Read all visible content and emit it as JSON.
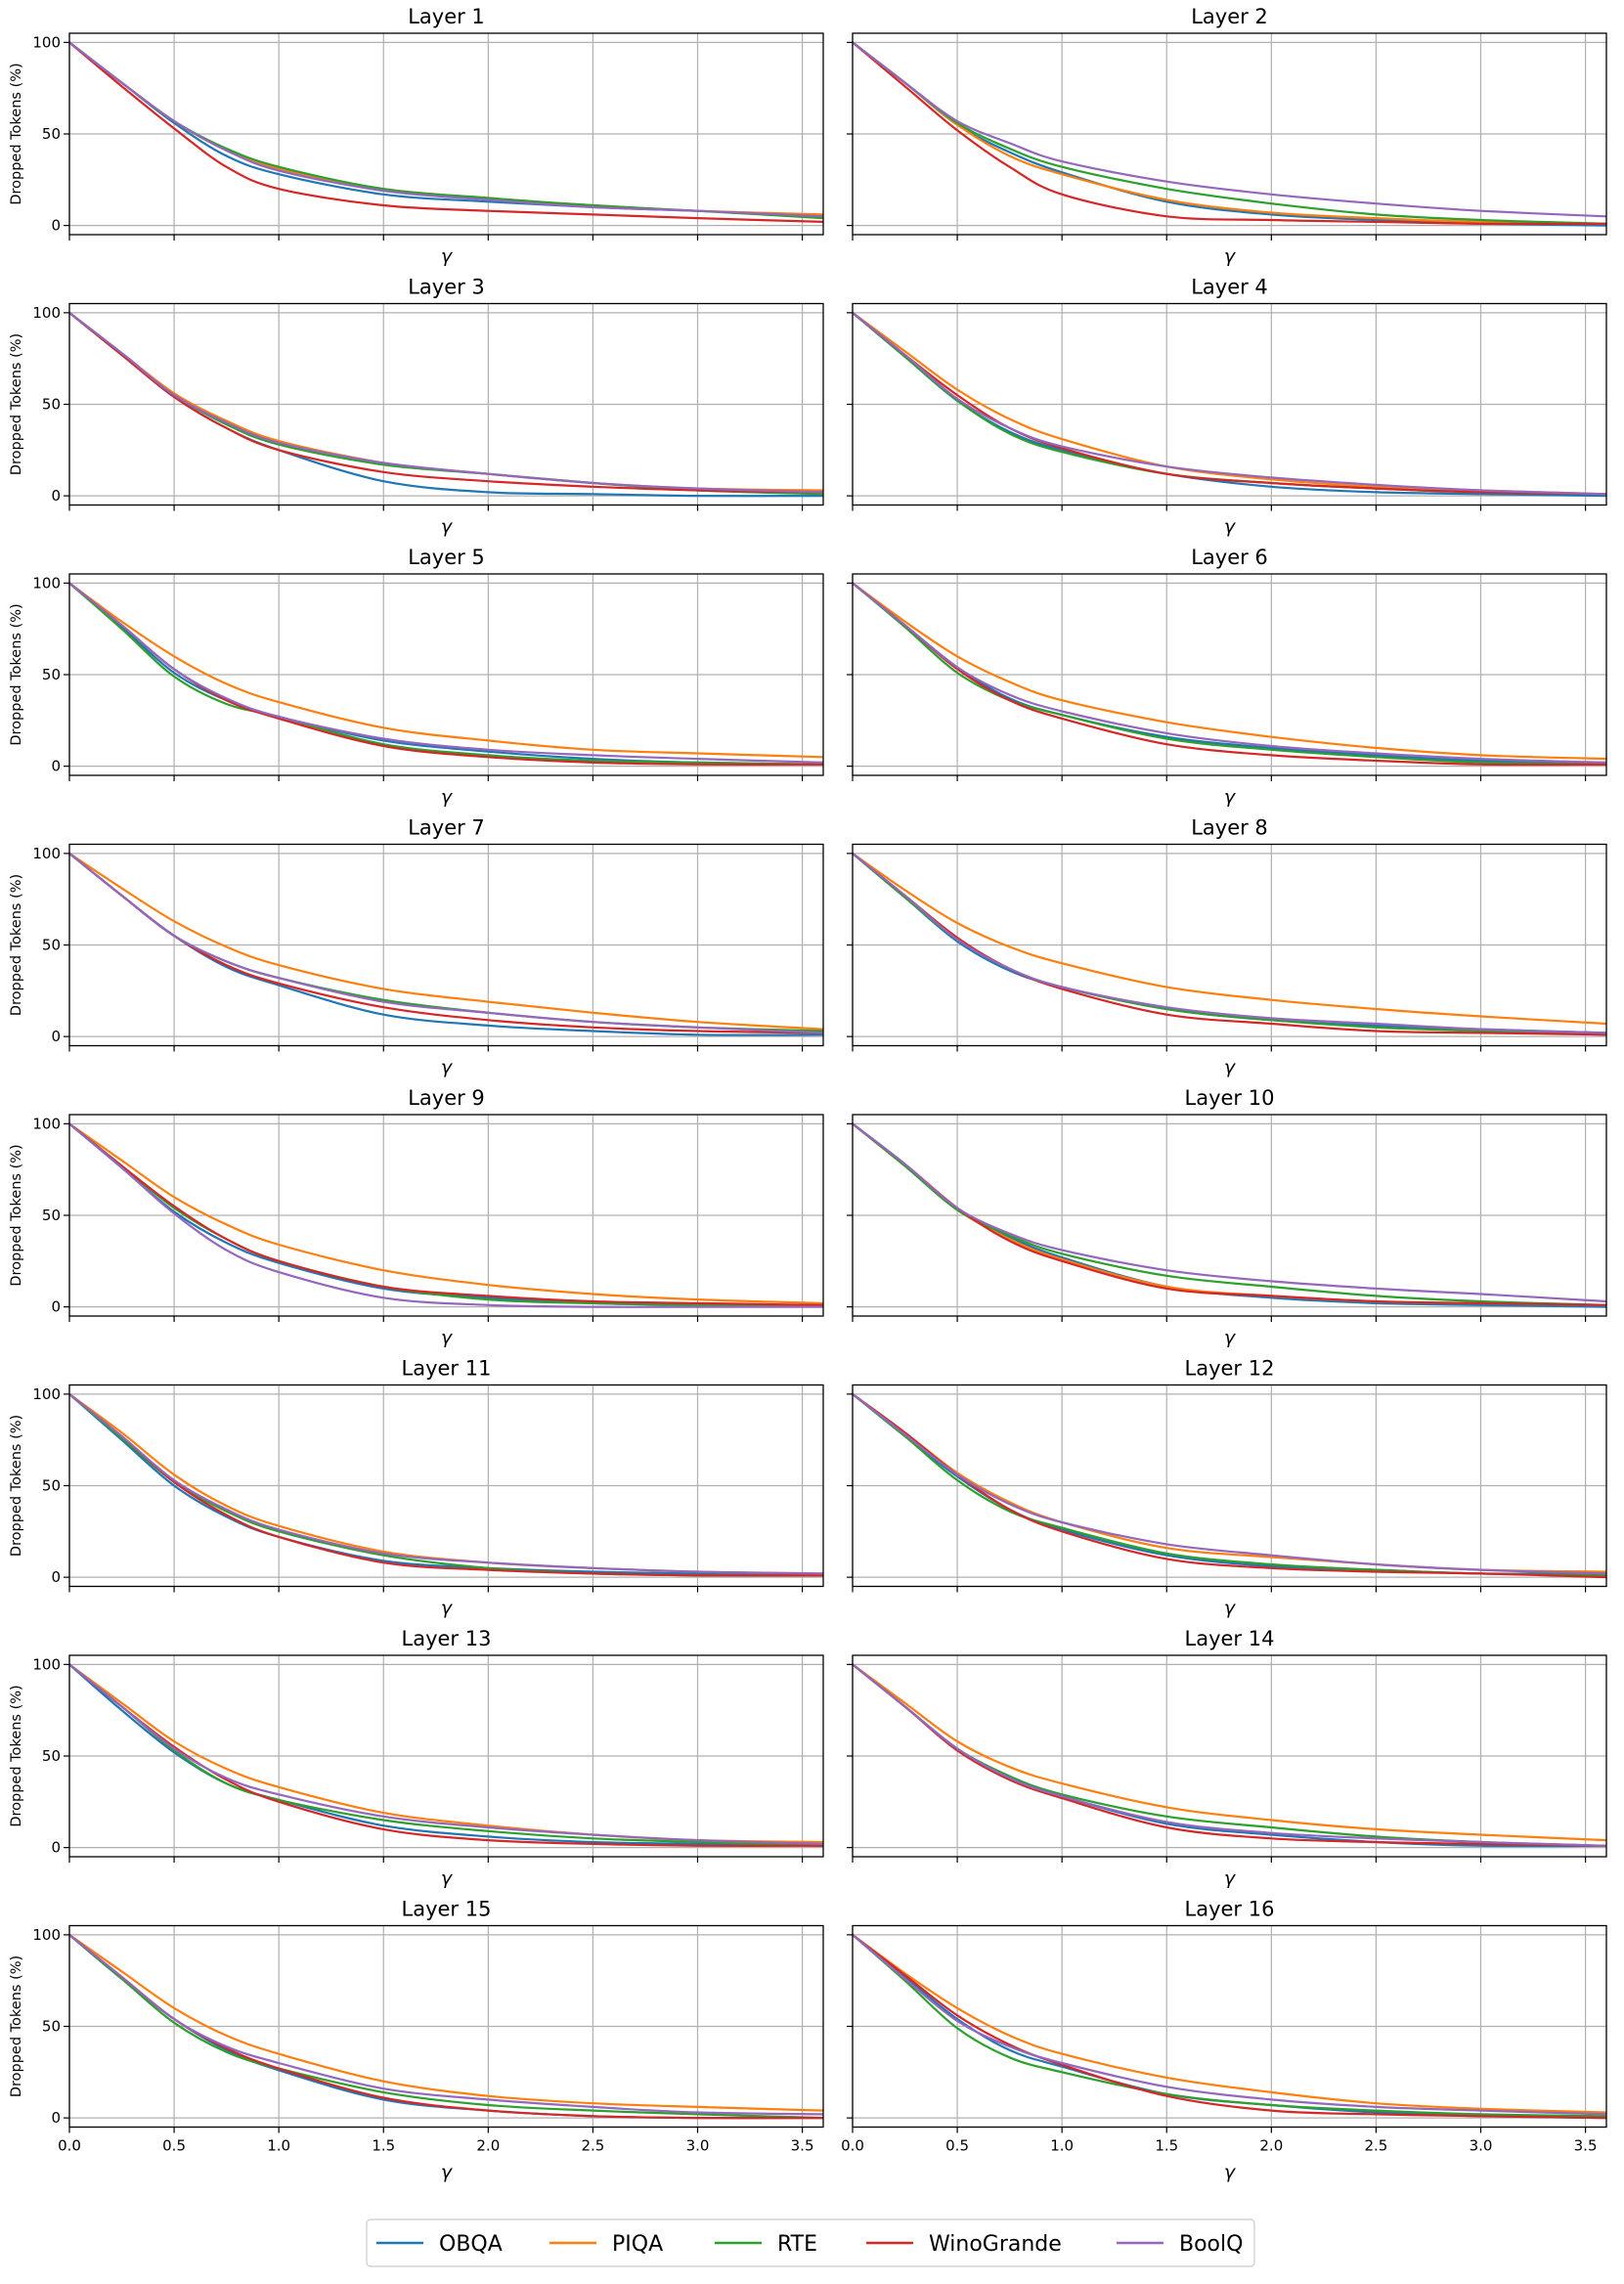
{
  "chart_data": {
    "type": "line",
    "ylabel": "Dropped Tokens (%)",
    "xlabel": "γ",
    "xlim": [
      0,
      3.6
    ],
    "ylim": [
      -5,
      105
    ],
    "xticks": [
      "0.0",
      "0.5",
      "1.0",
      "1.5",
      "2.0",
      "2.5",
      "3.0",
      "3.5"
    ],
    "yticks": [
      "0",
      "50",
      "100"
    ],
    "grid": true,
    "legend_placement": "bottom-center",
    "x": [
      0,
      0.25,
      0.5,
      0.75,
      1.0,
      1.5,
      2.0,
      2.5,
      3.0,
      3.6
    ],
    "series_meta": [
      {
        "name": "OBQA",
        "color": "#1f77b4"
      },
      {
        "name": "PIQA",
        "color": "#ff7f0e"
      },
      {
        "name": "RTE",
        "color": "#2ca02c"
      },
      {
        "name": "WinoGrande",
        "color": "#d62728"
      },
      {
        "name": "BoolQ",
        "color": "#9467bd"
      }
    ],
    "panels": [
      {
        "title": "Layer 1",
        "series": [
          [
            100,
            78,
            56,
            38,
            28,
            17,
            13,
            10,
            8,
            5
          ],
          [
            100,
            78,
            57,
            41,
            31,
            20,
            15,
            11,
            8,
            6
          ],
          [
            100,
            78,
            57,
            42,
            32,
            20,
            15,
            11,
            8,
            4
          ],
          [
            100,
            76,
            53,
            32,
            20,
            11,
            8,
            6,
            4,
            2
          ],
          [
            100,
            78,
            57,
            41,
            30,
            19,
            14,
            10,
            8,
            5
          ]
        ]
      },
      {
        "title": "Layer 2",
        "series": [
          [
            100,
            78,
            55,
            40,
            29,
            13,
            6,
            3,
            1,
            0
          ],
          [
            100,
            78,
            55,
            38,
            28,
            14,
            7,
            4,
            2,
            1
          ],
          [
            100,
            78,
            56,
            42,
            32,
            20,
            12,
            6,
            3,
            1
          ],
          [
            100,
            76,
            52,
            32,
            17,
            5,
            3,
            2,
            1,
            1
          ],
          [
            100,
            78,
            57,
            45,
            35,
            24,
            17,
            12,
            8,
            5
          ]
        ]
      },
      {
        "title": "Layer 3",
        "series": [
          [
            100,
            77,
            54,
            37,
            25,
            8,
            2,
            1,
            0,
            0
          ],
          [
            100,
            78,
            56,
            41,
            30,
            18,
            12,
            7,
            4,
            3
          ],
          [
            100,
            77,
            55,
            39,
            28,
            17,
            12,
            7,
            3,
            1
          ],
          [
            100,
            77,
            54,
            37,
            25,
            13,
            8,
            5,
            3,
            2
          ],
          [
            100,
            78,
            55,
            40,
            29,
            18,
            12,
            7,
            4,
            2
          ]
        ]
      },
      {
        "title": "Layer 4",
        "series": [
          [
            100,
            76,
            52,
            35,
            25,
            12,
            5,
            2,
            1,
            0
          ],
          [
            100,
            79,
            58,
            42,
            31,
            16,
            9,
            5,
            3,
            1
          ],
          [
            100,
            76,
            52,
            34,
            24,
            12,
            7,
            4,
            2,
            1
          ],
          [
            100,
            77,
            55,
            37,
            26,
            12,
            7,
            4,
            2,
            1
          ],
          [
            100,
            77,
            53,
            37,
            27,
            16,
            10,
            6,
            3,
            1
          ]
        ]
      },
      {
        "title": "Layer 5",
        "series": [
          [
            100,
            76,
            51,
            36,
            27,
            14,
            8,
            4,
            2,
            1
          ],
          [
            100,
            79,
            60,
            45,
            35,
            21,
            14,
            9,
            7,
            5
          ],
          [
            100,
            75,
            49,
            34,
            27,
            12,
            6,
            3,
            2,
            1
          ],
          [
            100,
            77,
            53,
            36,
            26,
            11,
            5,
            2,
            1,
            1
          ],
          [
            100,
            77,
            53,
            37,
            27,
            15,
            9,
            6,
            4,
            2
          ]
        ]
      },
      {
        "title": "Layer 6",
        "series": [
          [
            100,
            77,
            54,
            37,
            28,
            16,
            10,
            6,
            3,
            2
          ],
          [
            100,
            79,
            60,
            46,
            36,
            24,
            16,
            10,
            6,
            4
          ],
          [
            100,
            76,
            51,
            36,
            28,
            15,
            9,
            5,
            2,
            1
          ],
          [
            100,
            77,
            53,
            36,
            26,
            12,
            6,
            3,
            1,
            1
          ],
          [
            100,
            77,
            54,
            39,
            30,
            18,
            11,
            7,
            4,
            2
          ]
        ]
      },
      {
        "title": "Layer 7",
        "series": [
          [
            100,
            77,
            55,
            38,
            28,
            12,
            6,
            3,
            1,
            1
          ],
          [
            100,
            81,
            63,
            49,
            39,
            26,
            19,
            13,
            8,
            4
          ],
          [
            100,
            77,
            55,
            41,
            32,
            20,
            13,
            8,
            5,
            3
          ],
          [
            100,
            77,
            55,
            39,
            29,
            16,
            9,
            5,
            3,
            2
          ],
          [
            100,
            77,
            55,
            41,
            32,
            19,
            13,
            8,
            5,
            2
          ]
        ]
      },
      {
        "title": "Layer 8",
        "series": [
          [
            100,
            76,
            52,
            36,
            27,
            15,
            9,
            6,
            4,
            2
          ],
          [
            100,
            80,
            62,
            49,
            40,
            27,
            20,
            15,
            11,
            7
          ],
          [
            100,
            76,
            53,
            37,
            27,
            15,
            9,
            5,
            3,
            1
          ],
          [
            100,
            77,
            54,
            37,
            26,
            12,
            7,
            3,
            2,
            1
          ],
          [
            100,
            77,
            53,
            37,
            27,
            16,
            10,
            7,
            4,
            2
          ]
        ]
      },
      {
        "title": "Layer 9",
        "series": [
          [
            100,
            76,
            52,
            35,
            24,
            10,
            5,
            2,
            1,
            1
          ],
          [
            100,
            80,
            60,
            45,
            34,
            20,
            12,
            7,
            4,
            2
          ],
          [
            100,
            77,
            54,
            37,
            25,
            11,
            4,
            2,
            1,
            1
          ],
          [
            100,
            77,
            55,
            37,
            25,
            11,
            6,
            3,
            2,
            1
          ],
          [
            100,
            76,
            51,
            31,
            19,
            5,
            1,
            0,
            0,
            0
          ]
        ]
      },
      {
        "title": "Layer 10",
        "series": [
          [
            100,
            77,
            53,
            38,
            27,
            11,
            5,
            2,
            1,
            0
          ],
          [
            100,
            77,
            53,
            37,
            26,
            11,
            6,
            3,
            2,
            1
          ],
          [
            100,
            77,
            53,
            39,
            29,
            17,
            11,
            6,
            3,
            1
          ],
          [
            100,
            78,
            54,
            36,
            25,
            10,
            6,
            3,
            2,
            1
          ],
          [
            100,
            78,
            54,
            40,
            31,
            20,
            14,
            10,
            7,
            3
          ]
        ]
      },
      {
        "title": "Layer 11",
        "series": [
          [
            100,
            75,
            50,
            33,
            22,
            9,
            5,
            3,
            2,
            1
          ],
          [
            100,
            79,
            56,
            39,
            28,
            14,
            8,
            5,
            3,
            2
          ],
          [
            100,
            76,
            52,
            36,
            25,
            12,
            5,
            2,
            1,
            1
          ],
          [
            100,
            77,
            52,
            34,
            22,
            8,
            4,
            2,
            1,
            1
          ],
          [
            100,
            77,
            53,
            37,
            26,
            13,
            8,
            5,
            3,
            2
          ]
        ]
      },
      {
        "title": "Layer 12",
        "series": [
          [
            100,
            77,
            55,
            37,
            26,
            12,
            6,
            4,
            2,
            2
          ],
          [
            100,
            79,
            57,
            41,
            30,
            16,
            11,
            7,
            4,
            3
          ],
          [
            100,
            77,
            53,
            36,
            27,
            13,
            7,
            4,
            2,
            1
          ],
          [
            100,
            79,
            56,
            37,
            25,
            10,
            5,
            3,
            2,
            0
          ],
          [
            100,
            78,
            56,
            40,
            30,
            18,
            12,
            7,
            4,
            2
          ]
        ]
      },
      {
        "title": "Layer 13",
        "series": [
          [
            100,
            75,
            52,
            35,
            26,
            12,
            6,
            3,
            2,
            1
          ],
          [
            100,
            79,
            58,
            43,
            33,
            19,
            12,
            7,
            4,
            3
          ],
          [
            100,
            77,
            53,
            35,
            26,
            15,
            9,
            5,
            3,
            1
          ],
          [
            100,
            77,
            55,
            37,
            25,
            10,
            4,
            2,
            1,
            1
          ],
          [
            100,
            77,
            54,
            38,
            29,
            17,
            11,
            7,
            4,
            2
          ]
        ]
      },
      {
        "title": "Layer 14",
        "series": [
          [
            100,
            77,
            54,
            37,
            28,
            13,
            7,
            3,
            1,
            1
          ],
          [
            100,
            79,
            58,
            44,
            35,
            22,
            15,
            10,
            7,
            4
          ],
          [
            100,
            77,
            54,
            39,
            29,
            17,
            11,
            6,
            3,
            1
          ],
          [
            100,
            77,
            53,
            37,
            27,
            11,
            5,
            3,
            2,
            1
          ],
          [
            100,
            77,
            54,
            38,
            28,
            14,
            8,
            5,
            3,
            1
          ]
        ]
      },
      {
        "title": "Layer 15",
        "series": [
          [
            100,
            76,
            54,
            37,
            26,
            10,
            4,
            1,
            0,
            0
          ],
          [
            100,
            80,
            60,
            45,
            35,
            20,
            12,
            8,
            6,
            4
          ],
          [
            100,
            76,
            52,
            36,
            27,
            14,
            7,
            4,
            2,
            0
          ],
          [
            100,
            77,
            54,
            38,
            27,
            11,
            4,
            1,
            0,
            0
          ],
          [
            100,
            77,
            54,
            39,
            30,
            16,
            10,
            6,
            3,
            2
          ]
        ]
      },
      {
        "title": "Layer 16",
        "series": [
          [
            100,
            77,
            54,
            37,
            28,
            13,
            7,
            3,
            1,
            0
          ],
          [
            100,
            79,
            60,
            45,
            35,
            22,
            14,
            8,
            5,
            3
          ],
          [
            100,
            75,
            49,
            33,
            25,
            13,
            7,
            4,
            2,
            1
          ],
          [
            100,
            78,
            56,
            40,
            29,
            12,
            4,
            2,
            1,
            0
          ],
          [
            100,
            76,
            53,
            39,
            30,
            17,
            10,
            6,
            4,
            2
          ]
        ]
      }
    ]
  }
}
